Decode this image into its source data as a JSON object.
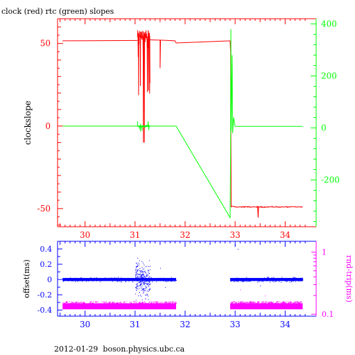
{
  "chart_data": [
    {
      "type": "line",
      "title": "clock (red) rtc (green) slopes",
      "ylabel": "clockslope",
      "xlim": [
        29.45,
        34.62
      ],
      "ylim_left": [
        -61,
        65
      ],
      "ylim_right": [
        -380,
        420
      ],
      "x_ticks": [
        "30",
        "31",
        "32",
        "33",
        "34"
      ],
      "y_ticks_left": [
        "50",
        "0",
        "-50"
      ],
      "y_ticks_right": [
        "400",
        "200",
        "0",
        "-200"
      ],
      "axis_color": "#ff0000",
      "series": [
        {
          "name": "clock",
          "axis": "left",
          "color": "#ff0000",
          "x": [
            29.55,
            31.0,
            31.05,
            31.08,
            31.1,
            31.12,
            31.15,
            31.18,
            31.22,
            31.25,
            31.3,
            31.5,
            31.8,
            31.82,
            32.9,
            32.93,
            32.95,
            33.0,
            33.4,
            33.45,
            33.5,
            34.35
          ],
          "y": [
            51.5,
            51.8,
            20,
            57,
            5,
            58,
            10,
            56,
            15,
            52,
            52,
            52,
            51.5,
            50.5,
            51.5,
            -49,
            -49.5,
            -49,
            -49,
            -55,
            -49,
            -49
          ]
        },
        {
          "name": "rtc",
          "axis": "right",
          "color": "#00ff00",
          "x": [
            29.55,
            31.05,
            31.1,
            31.15,
            31.2,
            31.3,
            31.82,
            32.9,
            32.92,
            32.94,
            32.96,
            33.0,
            34.35
          ],
          "y": [
            7,
            7,
            -10,
            20,
            0,
            7,
            7,
            -340,
            0,
            360,
            -30,
            6,
            6
          ]
        }
      ]
    },
    {
      "type": "scatter",
      "xlim": [
        29.45,
        34.62
      ],
      "ylim_left": [
        -0.48,
        0.5
      ],
      "ylim_right": [
        0.093,
        1.5
      ],
      "x_ticks": [
        "30",
        "31",
        "32",
        "33",
        "34"
      ],
      "y_ticks_left": [
        "0.4",
        "0.2",
        "0",
        "-0.2",
        "-0.4"
      ],
      "y_ticks_right": [
        "1",
        "0.1"
      ],
      "ylabel_left": "offset(ms)",
      "ylabel_right": "rnd-trip(ms)",
      "axis_color": "#0000ff",
      "series": [
        {
          "name": "offset",
          "axis": "left",
          "color": "#0000ff",
          "segments": [
            [
              29.55,
              31.82
            ],
            [
              32.9,
              34.35
            ]
          ],
          "baseline": 0.0,
          "noise": 0.02,
          "burst_range": [
            31.0,
            31.3
          ],
          "burst_amplitude": 0.4
        },
        {
          "name": "rnd-trip",
          "axis": "right",
          "color": "#ff00ff",
          "segments": [
            [
              29.55,
              31.82
            ],
            [
              32.9,
              34.35
            ]
          ],
          "baseline": 0.135,
          "band": [
            0.12,
            0.15
          ]
        }
      ]
    }
  ],
  "footer": "2012-01-29  boson.physics.ubc.ca"
}
